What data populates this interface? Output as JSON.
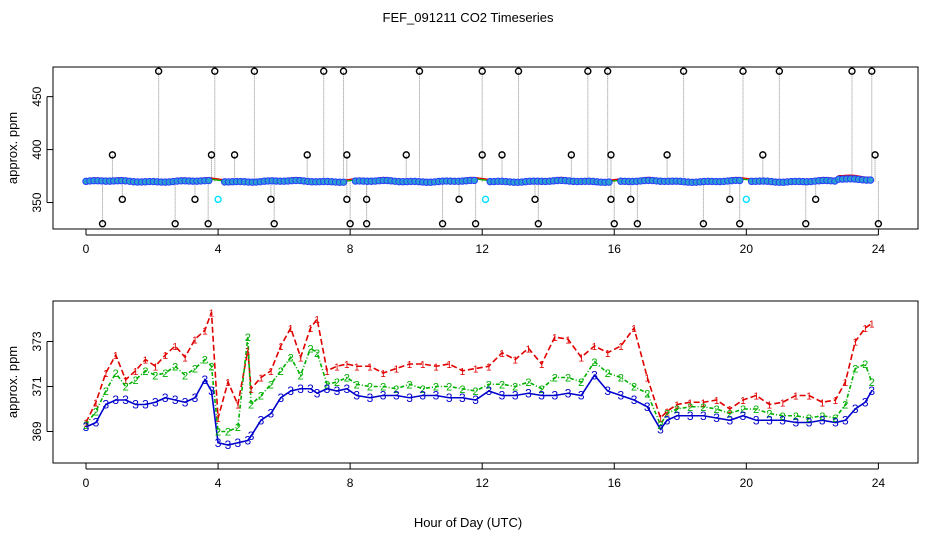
{
  "title": "FEF_091211  CO2 Timeseries",
  "xlabel": "Hour of Day (UTC)",
  "chart_data": [
    {
      "type": "scatter",
      "panel": "top",
      "ylabel": "approx. ppm",
      "xlim": [
        -1,
        25.2
      ],
      "ylim": [
        325,
        478
      ],
      "xticks": [
        "0",
        "4",
        "8",
        "12",
        "16",
        "20",
        "24"
      ],
      "yticks": [
        "350",
        "400",
        "450"
      ],
      "series": [
        {
          "name": "co2_mean",
          "color": "#2a3cff",
          "fill": "#2a9fd0",
          "baseline": 370
        },
        {
          "name": "line_1",
          "color": "#e00000"
        },
        {
          "name": "line_2",
          "color": "#00b000"
        },
        {
          "name": "spikes_high",
          "color": "#000000",
          "x": [
            2.2,
            3.9,
            5.1,
            7.2,
            7.8,
            10.1,
            12.0,
            13.1,
            15.2,
            15.8,
            18.1,
            19.9,
            21.0,
            23.2,
            23.8
          ],
          "y": [
            474,
            474,
            474,
            474,
            474,
            474,
            474,
            474,
            474,
            474,
            474,
            474,
            474,
            474,
            474
          ]
        },
        {
          "name": "spikes_mid",
          "color": "#000000",
          "x": [
            0.8,
            3.8,
            4.5,
            6.7,
            7.9,
            9.7,
            12.0,
            12.6,
            14.7,
            15.9,
            17.6,
            20.5,
            23.9
          ],
          "y": [
            395,
            395,
            395,
            395,
            395,
            395,
            395,
            395,
            395,
            395,
            395,
            395,
            395
          ]
        },
        {
          "name": "spikes_low",
          "color": "#000000",
          "x": [
            1.1,
            3.3,
            5.6,
            7.9,
            8.5,
            11.3,
            13.6,
            15.9,
            16.5,
            19.5,
            22.1
          ],
          "y": [
            353,
            353,
            353,
            353,
            353,
            353,
            353,
            353,
            353,
            353,
            353
          ]
        },
        {
          "name": "spikes_min",
          "color": "#000000",
          "x": [
            0.5,
            2.7,
            3.7,
            5.7,
            8.0,
            8.5,
            10.8,
            11.8,
            13.7,
            16.0,
            16.7,
            18.7,
            19.8,
            21.8,
            24.0
          ],
          "y": [
            330,
            330,
            330,
            330,
            330,
            330,
            330,
            330,
            330,
            330,
            330,
            330,
            330,
            330,
            330
          ]
        },
        {
          "name": "cyan_outliers",
          "color": "#00e0ff",
          "x": [
            4.0,
            12.1,
            20.0
          ],
          "y": [
            353,
            353,
            353
          ]
        }
      ]
    },
    {
      "type": "line",
      "panel": "bottom",
      "ylabel": "approx. ppm",
      "xlim": [
        -1,
        25.2
      ],
      "ylim": [
        367.6,
        374.8
      ],
      "xticks": [
        "0",
        "4",
        "8",
        "12",
        "16",
        "20",
        "24"
      ],
      "yticks": [
        "369",
        "371",
        "373"
      ],
      "series": [
        {
          "name": "1",
          "color": "#e00000",
          "x": [
            0,
            0.3,
            0.6,
            0.9,
            1.2,
            1.5,
            1.8,
            2.1,
            2.4,
            2.7,
            3.0,
            3.3,
            3.6,
            3.8,
            4.0,
            4.3,
            4.6,
            4.9,
            5.0,
            5.3,
            5.6,
            5.9,
            6.2,
            6.5,
            6.8,
            7.0,
            7.3,
            7.6,
            7.9,
            8.2,
            8.6,
            9.0,
            9.4,
            9.8,
            10.2,
            10.6,
            11.0,
            11.4,
            11.8,
            12.2,
            12.6,
            13.0,
            13.4,
            13.8,
            14.2,
            14.6,
            15.0,
            15.4,
            15.8,
            16.2,
            16.6,
            17.0,
            17.4,
            17.6,
            17.9,
            18.3,
            18.7,
            19.1,
            19.5,
            19.9,
            20.3,
            20.7,
            21.1,
            21.5,
            21.9,
            22.3,
            22.7,
            23.0,
            23.3,
            23.6,
            23.8
          ],
          "y": [
            369.4,
            370.3,
            371.6,
            372.4,
            371.3,
            371.7,
            372.2,
            371.9,
            372.4,
            372.8,
            372.3,
            373.1,
            373.5,
            374.3,
            369.6,
            371.2,
            370.2,
            372.6,
            370.9,
            371.4,
            371.7,
            372.8,
            373.6,
            372.3,
            373.6,
            374.0,
            371.7,
            371.9,
            372.0,
            371.9,
            371.9,
            371.6,
            371.8,
            372.0,
            372.0,
            371.9,
            372.0,
            371.7,
            371.8,
            371.9,
            372.5,
            372.2,
            372.7,
            372.0,
            373.2,
            373.1,
            372.3,
            372.8,
            372.5,
            372.8,
            373.6,
            371.4,
            369.6,
            369.9,
            370.2,
            370.3,
            370.3,
            370.4,
            370.0,
            370.4,
            370.6,
            370.2,
            370.3,
            370.6,
            370.6,
            370.3,
            370.4,
            371.2,
            373.0,
            373.6,
            373.8
          ]
        },
        {
          "name": "2",
          "color": "#00b000",
          "x": [
            0,
            0.3,
            0.6,
            0.9,
            1.2,
            1.5,
            1.8,
            2.1,
            2.4,
            2.7,
            3.0,
            3.3,
            3.6,
            3.8,
            4.0,
            4.3,
            4.6,
            4.9,
            5.0,
            5.3,
            5.6,
            5.9,
            6.2,
            6.5,
            6.8,
            7.0,
            7.3,
            7.6,
            7.9,
            8.2,
            8.6,
            9.0,
            9.4,
            9.8,
            10.2,
            10.6,
            11.0,
            11.4,
            11.8,
            12.2,
            12.6,
            13.0,
            13.4,
            13.8,
            14.2,
            14.6,
            15.0,
            15.4,
            15.8,
            16.2,
            16.6,
            17.0,
            17.4,
            17.6,
            17.9,
            18.3,
            18.7,
            19.1,
            19.5,
            19.9,
            20.3,
            20.7,
            21.1,
            21.5,
            21.9,
            22.3,
            22.7,
            23.0,
            23.3,
            23.6,
            23.8
          ],
          "y": [
            369.3,
            369.9,
            370.8,
            371.6,
            371.0,
            371.3,
            371.7,
            371.5,
            371.6,
            371.9,
            371.5,
            371.8,
            372.2,
            371.9,
            369.0,
            369.0,
            369.2,
            373.2,
            370.2,
            370.6,
            371.1,
            371.7,
            372.3,
            371.5,
            372.7,
            372.5,
            371.1,
            371.2,
            371.4,
            371.1,
            371.0,
            371.0,
            370.9,
            371.1,
            370.9,
            371.0,
            371.0,
            370.9,
            370.8,
            371.1,
            371.1,
            371.0,
            371.2,
            370.9,
            371.4,
            371.4,
            371.2,
            372.1,
            371.6,
            371.4,
            371.0,
            370.7,
            369.3,
            369.8,
            370.0,
            370.1,
            370.1,
            370.0,
            369.8,
            370.0,
            370.0,
            369.8,
            369.7,
            369.7,
            369.6,
            369.7,
            369.6,
            370.2,
            371.8,
            372.0,
            371.2
          ]
        },
        {
          "name": "3",
          "color": "#0000cc",
          "x": [
            0,
            0.3,
            0.6,
            0.9,
            1.2,
            1.5,
            1.8,
            2.1,
            2.4,
            2.7,
            3.0,
            3.3,
            3.6,
            3.8,
            4.0,
            4.3,
            4.6,
            4.9,
            5.0,
            5.3,
            5.6,
            5.9,
            6.2,
            6.5,
            6.8,
            7.0,
            7.3,
            7.6,
            7.9,
            8.2,
            8.6,
            9.0,
            9.4,
            9.8,
            10.2,
            10.6,
            11.0,
            11.4,
            11.8,
            12.2,
            12.6,
            13.0,
            13.4,
            13.8,
            14.2,
            14.6,
            15.0,
            15.4,
            15.8,
            16.2,
            16.6,
            17.0,
            17.4,
            17.6,
            17.9,
            18.3,
            18.7,
            19.1,
            19.5,
            19.9,
            20.3,
            20.7,
            21.1,
            21.5,
            21.9,
            22.3,
            22.7,
            23.0,
            23.3,
            23.6,
            23.8
          ],
          "y": [
            369.2,
            369.4,
            370.2,
            370.4,
            370.4,
            370.2,
            370.2,
            370.3,
            370.5,
            370.4,
            370.3,
            370.5,
            371.3,
            370.8,
            368.5,
            368.4,
            368.5,
            368.6,
            368.8,
            369.5,
            369.8,
            370.5,
            370.8,
            370.9,
            370.9,
            370.7,
            370.9,
            370.8,
            370.9,
            370.6,
            370.5,
            370.6,
            370.6,
            370.5,
            370.6,
            370.6,
            370.5,
            370.5,
            370.4,
            370.8,
            370.6,
            370.6,
            370.7,
            370.6,
            370.6,
            370.7,
            370.6,
            371.5,
            370.8,
            370.6,
            370.4,
            370.1,
            369.1,
            369.5,
            369.7,
            369.7,
            369.7,
            369.6,
            369.5,
            369.7,
            369.5,
            369.5,
            369.5,
            369.4,
            369.4,
            369.5,
            369.4,
            369.5,
            370.0,
            370.3,
            370.8
          ]
        }
      ]
    }
  ]
}
